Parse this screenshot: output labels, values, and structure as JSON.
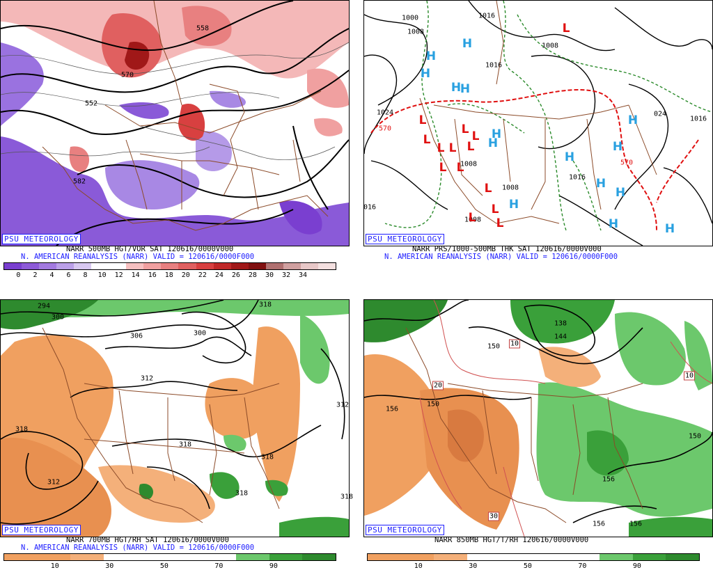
{
  "credit": "PSU METEOROLOGY",
  "panels": [
    {
      "id": "tl",
      "title_line1": "NARR 500MB HGT/VOR SAT 120616/0000V000",
      "title_line2": "N. AMERICAN REANALYSIS (NARR) VALID = 120616/0000F000",
      "colorbar_ticks": [
        "0",
        "2",
        "4",
        "6",
        "8",
        "10",
        "12",
        "14",
        "16",
        "18",
        "20",
        "22",
        "24",
        "26",
        "28",
        "30",
        "32",
        "34"
      ],
      "colorbar_colors": [
        "#7a3fd0",
        "#8d5ad8",
        "#a37ae0",
        "#bba0e8",
        "#d8c8f0",
        "#ffffff",
        "#ffffff",
        "#f6c0c0",
        "#f0a0a0",
        "#e88080",
        "#e06060",
        "#d84040",
        "#c02828",
        "#a01818",
        "#801010",
        "#b07070",
        "#d0a0a0",
        "#e8c8c8",
        "#f4e0e0"
      ],
      "contour_labels": [
        {
          "t": "558"
        },
        {
          "t": "570"
        },
        {
          "t": "582"
        },
        {
          "t": "552"
        }
      ]
    },
    {
      "id": "tr",
      "title_line1": "NARR PRS/1000-500MB THK SAT 120616/0000V000",
      "title_line2": "N. AMERICAN REANALYSIS (NARR) VALID = 120616/0000F000",
      "highs": "H",
      "lows": "L",
      "contour_labels": [
        {
          "t": "1000"
        },
        {
          "t": "1008"
        },
        {
          "t": "1016"
        },
        {
          "t": "1008"
        },
        {
          "t": "1024"
        },
        {
          "t": "570"
        },
        {
          "t": "1008"
        },
        {
          "t": "1016"
        },
        {
          "t": "1008"
        },
        {
          "t": "1008"
        },
        {
          "t": "1016"
        },
        {
          "t": "024"
        },
        {
          "t": "1016"
        },
        {
          "t": "570"
        },
        {
          "t": "016"
        }
      ]
    },
    {
      "id": "bl",
      "title_line1": "NARR 700MB HGT/RH SAT 120616/0000V000",
      "title_line2": "N. AMERICAN REANALYSIS (NARR) VALID = 120616/0000F000",
      "colorbar_ticks": [
        "10",
        "30",
        "50",
        "70",
        "90"
      ],
      "contour_labels": [
        {
          "t": "294"
        },
        {
          "t": "300"
        },
        {
          "t": "306"
        },
        {
          "t": "300"
        },
        {
          "t": "318"
        },
        {
          "t": "312"
        },
        {
          "t": "318"
        },
        {
          "t": "318"
        },
        {
          "t": "318"
        },
        {
          "t": "312"
        },
        {
          "t": "318"
        },
        {
          "t": "312"
        },
        {
          "t": "318"
        }
      ]
    },
    {
      "id": "br",
      "title_line1": "NARR 850MB HGT/T/RH 120616/0000V000",
      "title_line2": "",
      "colorbar_ticks": [
        "10",
        "30",
        "50",
        "70",
        "90"
      ],
      "contour_labels": [
        {
          "t": "138"
        },
        {
          "t": "144"
        },
        {
          "t": "150"
        },
        {
          "t": "10"
        },
        {
          "t": "10"
        },
        {
          "t": "20"
        },
        {
          "t": "150"
        },
        {
          "t": "156"
        },
        {
          "t": "150"
        },
        {
          "t": "156"
        },
        {
          "t": "30"
        },
        {
          "t": "156"
        },
        {
          "t": "156"
        }
      ]
    }
  ],
  "chart_data": [
    {
      "type": "heatmap",
      "title": "NARR 500MB HGT/VOR SAT 120616/0000V000",
      "subtitle": "N. AMERICAN REANALYSIS (NARR) VALID = 120616/0000F000",
      "colorbar": [
        0,
        2,
        4,
        6,
        8,
        10,
        12,
        14,
        16,
        18,
        20,
        22,
        24,
        26,
        28,
        30,
        32,
        34
      ],
      "contour_labels": [
        558,
        570,
        582,
        552
      ]
    },
    {
      "type": "heatmap",
      "title": "NARR PRS/1000-500MB THK SAT 120616/0000V000",
      "subtitle": "N. AMERICAN REANALYSIS (NARR) VALID = 120616/0000F000",
      "markers": [
        "H",
        "L"
      ],
      "contour_labels": [
        1000,
        1008,
        1016,
        1024,
        570
      ]
    },
    {
      "type": "heatmap",
      "title": "NARR 700MB HGT/RH SAT 120616/0000V000",
      "subtitle": "N. AMERICAN REANALYSIS (NARR) VALID = 120616/0000F000",
      "colorbar": [
        10,
        30,
        50,
        70,
        90
      ],
      "contour_labels": [
        294,
        300,
        306,
        312,
        318
      ]
    },
    {
      "type": "heatmap",
      "title": "NARR 850MB HGT/T/RH 120616/0000V000",
      "colorbar": [
        10,
        30,
        50,
        70,
        90
      ],
      "contour_labels": [
        138,
        144,
        150,
        156,
        10,
        20,
        30
      ]
    }
  ]
}
